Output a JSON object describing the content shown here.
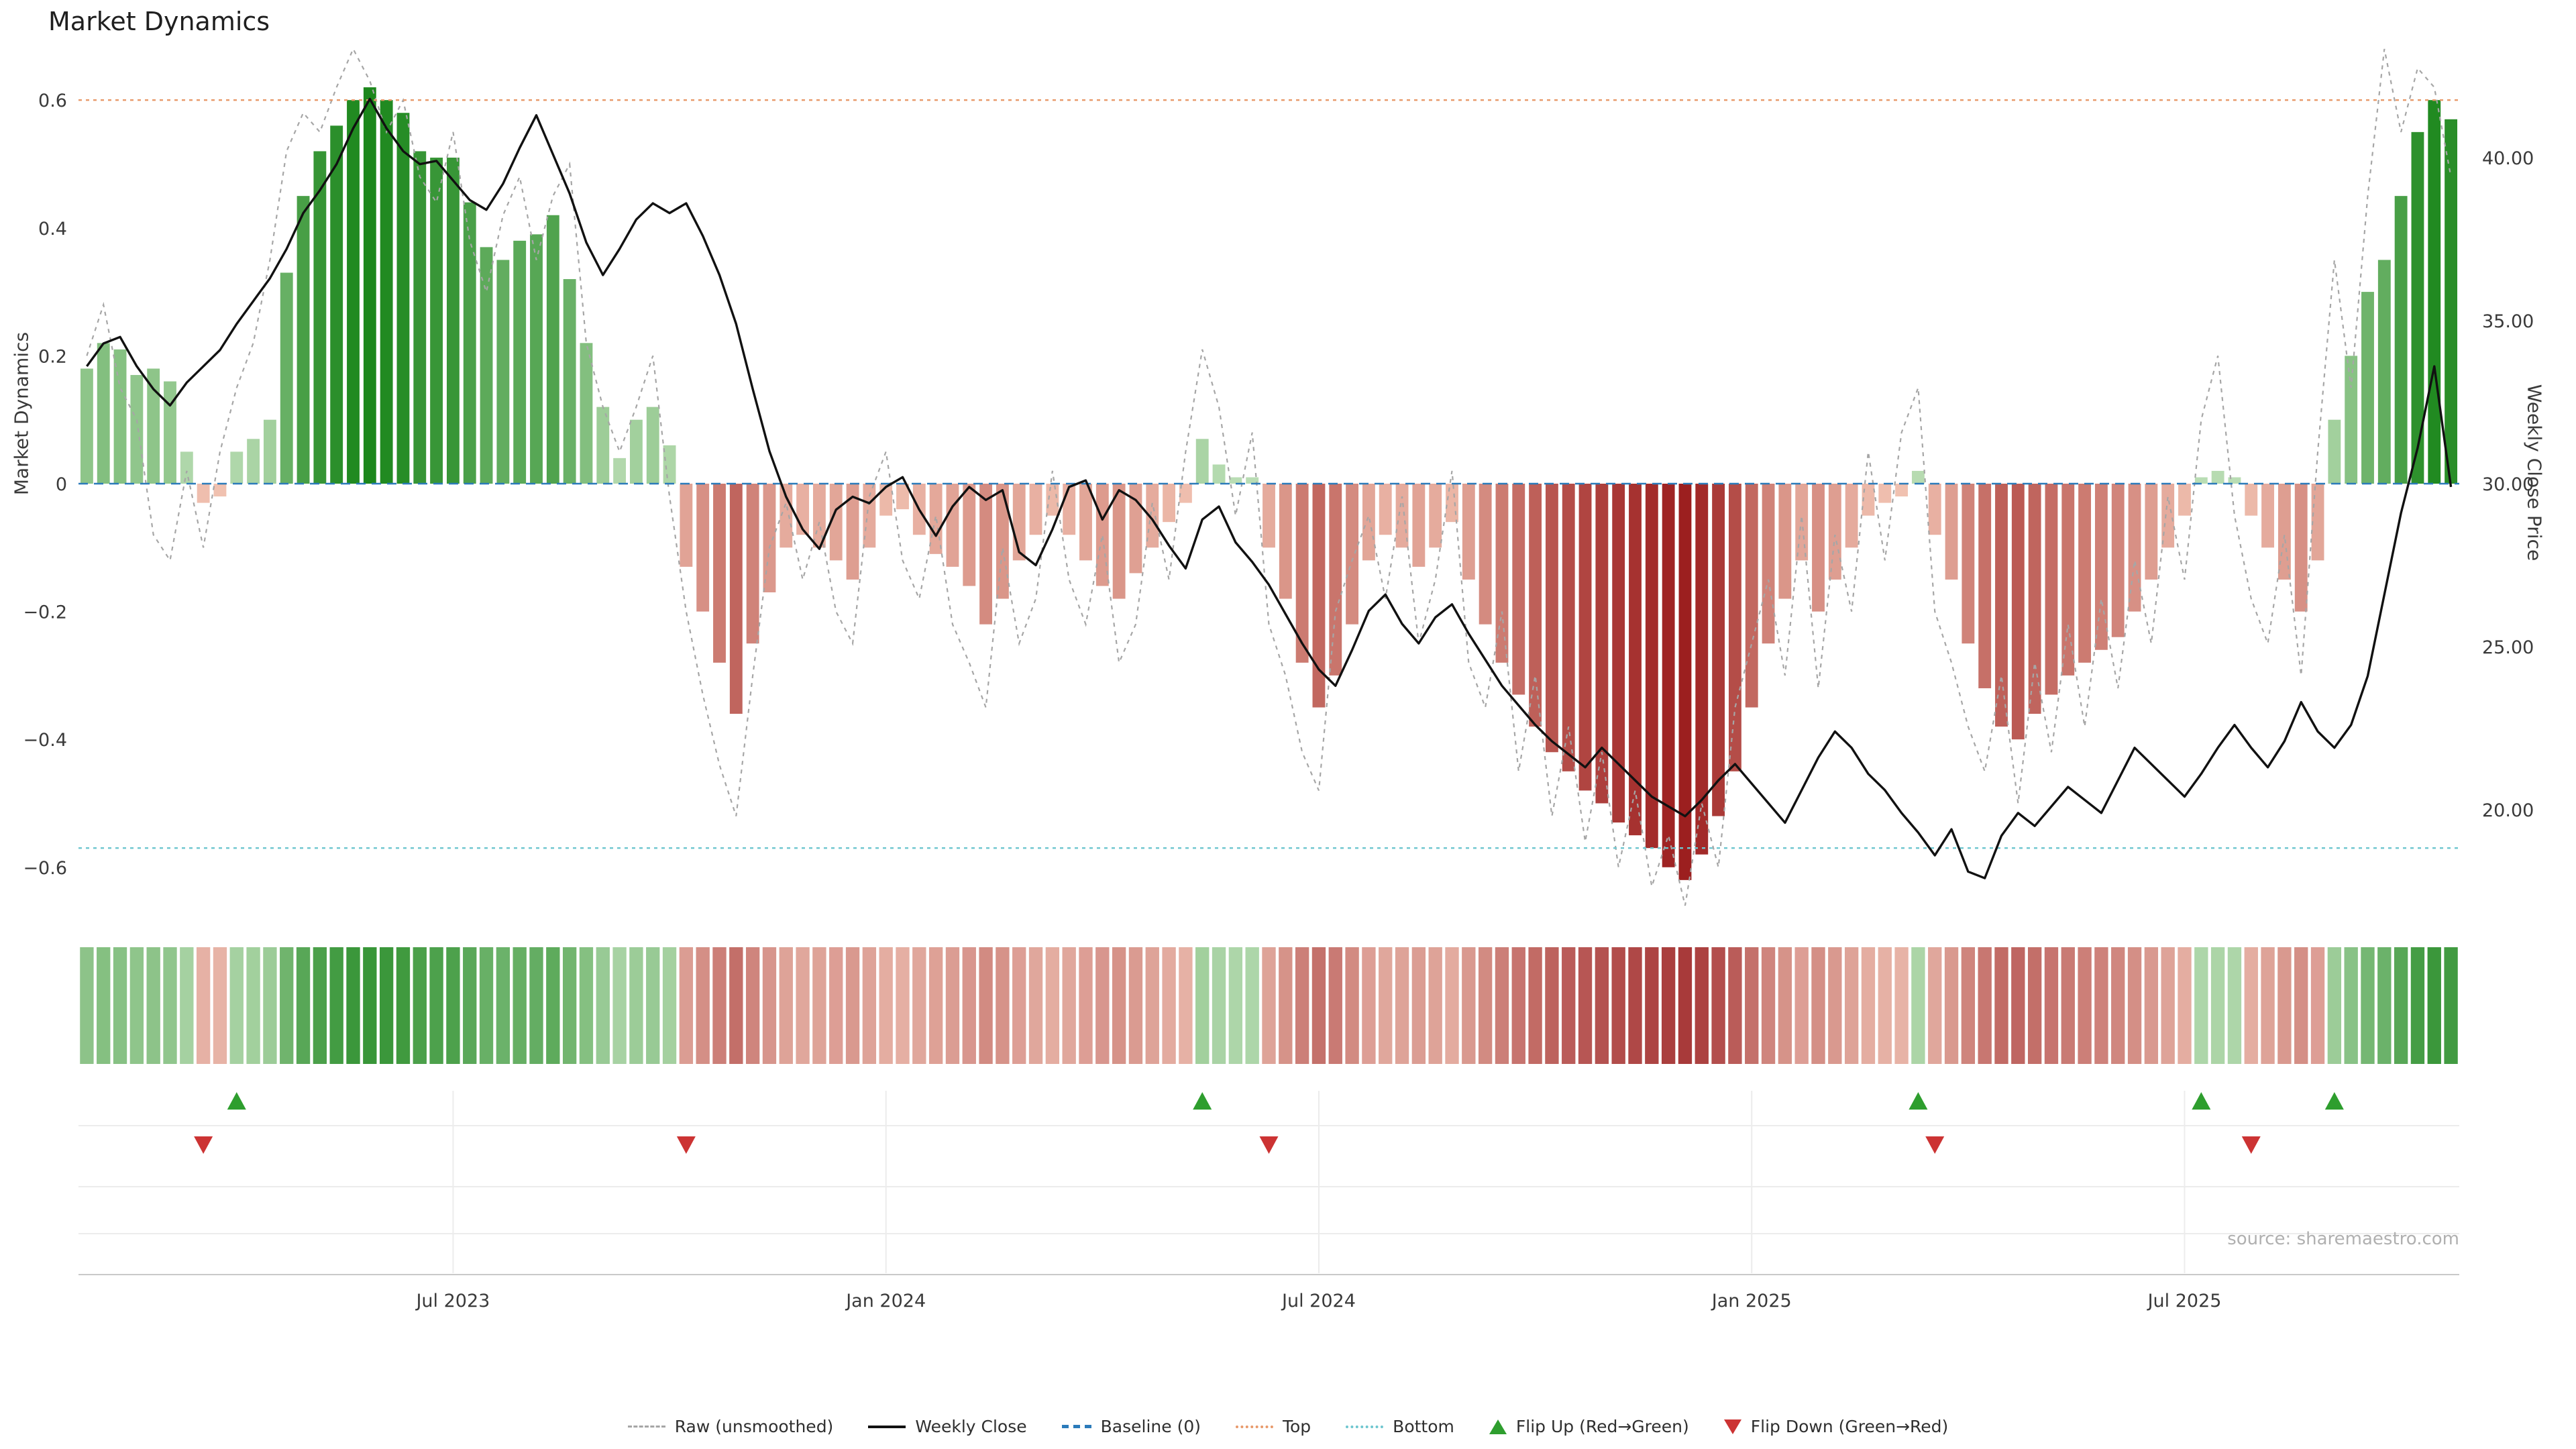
{
  "source": "source: sharemaestro.com",
  "legend": {
    "items": [
      {
        "label": "Raw (unsmoothed)"
      },
      {
        "label": "Weekly Close"
      },
      {
        "label": "Baseline (0)"
      },
      {
        "label": "Top"
      },
      {
        "label": "Bottom"
      },
      {
        "label": "Flip Up (Red→Green)"
      },
      {
        "label": "Flip Down (Green→Red)"
      }
    ]
  },
  "colors": {
    "green_light": "#bcdeb6",
    "green_dark": "#1c871c",
    "red_light": "#f3c6b5",
    "red_dark": "#9c1f1f",
    "close_line": "#111111",
    "raw_line": "#a6a6a6",
    "baseline_line": "#2b7bba",
    "top_line": "#e8996a",
    "bottom_line": "#6ec6cf",
    "flip_up": "#2e9e2e",
    "flip_down": "#cc3333"
  },
  "chart_data": {
    "type": "bar",
    "title": "Market Dynamics",
    "legend_position": "bottom",
    "grid": false,
    "n_points": 143,
    "x_axis": {
      "tick_labels": [
        "Jul 2023",
        "Jan 2024",
        "Jul 2024",
        "Jan 2025",
        "Jul 2025"
      ],
      "tick_indices": [
        22,
        48,
        74,
        100,
        126
      ]
    },
    "y_left": {
      "label": "Market Dynamics",
      "tick_labels": [
        "0.6",
        "0.4",
        "0.2",
        "0",
        "−0.2",
        "−0.4",
        "−0.6"
      ],
      "tick_values": [
        0.6,
        0.4,
        0.2,
        0,
        -0.2,
        -0.4,
        -0.6
      ],
      "range": [
        -0.7,
        0.7
      ]
    },
    "y_right": {
      "label": "Weekly Close Price",
      "tick_labels": [
        "40.00",
        "35.00",
        "30.00",
        "25.00",
        "20.00"
      ],
      "tick_values": [
        40,
        35,
        30,
        25,
        20
      ],
      "range": [
        17,
        43
      ]
    },
    "reference_lines": {
      "baseline": 0,
      "top": 0.6,
      "bottom": -0.57
    },
    "flips": {
      "up_indices": [
        9,
        67,
        110,
        127,
        135
      ],
      "down_indices": [
        7,
        36,
        71,
        111,
        130
      ]
    },
    "series": [
      {
        "name": "Market Dynamics (bars)",
        "type": "bar",
        "axis": "left",
        "values": [
          0.18,
          0.22,
          0.21,
          0.17,
          0.18,
          0.16,
          0.05,
          -0.03,
          -0.02,
          0.05,
          0.07,
          0.1,
          0.33,
          0.45,
          0.52,
          0.56,
          0.6,
          0.62,
          0.6,
          0.58,
          0.52,
          0.51,
          0.51,
          0.44,
          0.37,
          0.35,
          0.38,
          0.39,
          0.42,
          0.32,
          0.22,
          0.12,
          0.04,
          0.1,
          0.12,
          0.06,
          -0.13,
          -0.2,
          -0.28,
          -0.36,
          -0.25,
          -0.17,
          -0.1,
          -0.08,
          -0.1,
          -0.12,
          -0.15,
          -0.1,
          -0.05,
          -0.04,
          -0.08,
          -0.11,
          -0.13,
          -0.16,
          -0.22,
          -0.18,
          -0.12,
          -0.08,
          -0.05,
          -0.08,
          -0.12,
          -0.16,
          -0.18,
          -0.14,
          -0.1,
          -0.06,
          -0.03,
          0.07,
          0.03,
          0.01,
          0.01,
          -0.1,
          -0.18,
          -0.28,
          -0.35,
          -0.3,
          -0.22,
          -0.12,
          -0.08,
          -0.1,
          -0.13,
          -0.1,
          -0.06,
          -0.15,
          -0.22,
          -0.28,
          -0.33,
          -0.38,
          -0.42,
          -0.45,
          -0.48,
          -0.5,
          -0.53,
          -0.55,
          -0.57,
          -0.6,
          -0.62,
          -0.58,
          -0.52,
          -0.45,
          -0.35,
          -0.25,
          -0.18,
          -0.12,
          -0.2,
          -0.15,
          -0.1,
          -0.05,
          -0.03,
          -0.02,
          0.02,
          -0.08,
          -0.15,
          -0.25,
          -0.32,
          -0.38,
          -0.4,
          -0.36,
          -0.33,
          -0.3,
          -0.28,
          -0.26,
          -0.24,
          -0.2,
          -0.15,
          -0.1,
          -0.05,
          0.01,
          0.02,
          0.01,
          -0.05,
          -0.1,
          -0.15,
          -0.2,
          -0.12,
          0.1,
          0.2,
          0.3,
          0.35,
          0.45,
          0.55,
          0.6,
          0.57
        ]
      },
      {
        "name": "Raw (unsmoothed)",
        "type": "line",
        "style": "dashed",
        "axis": "left",
        "values": [
          0.2,
          0.28,
          0.15,
          0.1,
          -0.08,
          -0.12,
          0.02,
          -0.1,
          0.05,
          0.15,
          0.22,
          0.35,
          0.52,
          0.58,
          0.55,
          0.62,
          0.68,
          0.63,
          0.55,
          0.6,
          0.48,
          0.44,
          0.55,
          0.38,
          0.3,
          0.42,
          0.48,
          0.35,
          0.45,
          0.5,
          0.22,
          0.12,
          0.05,
          0.12,
          0.2,
          -0.02,
          -0.2,
          -0.33,
          -0.44,
          -0.52,
          -0.3,
          -0.1,
          -0.03,
          -0.15,
          -0.06,
          -0.2,
          -0.25,
          -0.02,
          0.05,
          -0.12,
          -0.18,
          -0.05,
          -0.22,
          -0.28,
          -0.35,
          -0.1,
          -0.25,
          -0.18,
          0.02,
          -0.15,
          -0.22,
          -0.08,
          -0.28,
          -0.22,
          -0.03,
          -0.15,
          0.05,
          0.21,
          0.12,
          -0.05,
          0.08,
          -0.22,
          -0.3,
          -0.42,
          -0.48,
          -0.2,
          -0.12,
          -0.05,
          -0.18,
          -0.02,
          -0.25,
          -0.15,
          0.02,
          -0.28,
          -0.35,
          -0.2,
          -0.45,
          -0.3,
          -0.52,
          -0.38,
          -0.56,
          -0.42,
          -0.6,
          -0.48,
          -0.63,
          -0.55,
          -0.66,
          -0.5,
          -0.6,
          -0.35,
          -0.25,
          -0.15,
          -0.3,
          -0.05,
          -0.32,
          -0.08,
          -0.2,
          0.05,
          -0.12,
          0.08,
          0.15,
          -0.2,
          -0.28,
          -0.38,
          -0.45,
          -0.3,
          -0.5,
          -0.28,
          -0.42,
          -0.22,
          -0.38,
          -0.18,
          -0.32,
          -0.12,
          -0.25,
          -0.02,
          -0.15,
          0.1,
          0.2,
          -0.05,
          -0.18,
          -0.25,
          -0.08,
          -0.3,
          0.05,
          0.35,
          0.15,
          0.45,
          0.68,
          0.55,
          0.65,
          0.62,
          0.48
        ]
      },
      {
        "name": "Weekly Close",
        "type": "line",
        "axis": "right",
        "values": [
          33.6,
          34.3,
          34.5,
          33.6,
          32.9,
          32.4,
          33.1,
          33.6,
          34.1,
          34.9,
          35.6,
          36.3,
          37.2,
          38.3,
          39.0,
          39.8,
          40.9,
          41.8,
          40.9,
          40.2,
          39.8,
          39.9,
          39.3,
          38.7,
          38.4,
          39.2,
          40.3,
          41.3,
          40.1,
          38.9,
          37.4,
          36.4,
          37.2,
          38.1,
          38.6,
          38.3,
          38.6,
          37.6,
          36.4,
          34.9,
          32.9,
          31.0,
          29.6,
          28.6,
          28.0,
          29.2,
          29.6,
          29.4,
          29.9,
          30.2,
          29.2,
          28.4,
          29.3,
          29.9,
          29.5,
          29.8,
          27.9,
          27.5,
          28.6,
          29.9,
          30.1,
          28.9,
          29.8,
          29.5,
          28.9,
          28.1,
          27.4,
          28.9,
          29.3,
          28.2,
          27.6,
          26.9,
          26.0,
          25.1,
          24.3,
          23.8,
          24.9,
          26.1,
          26.6,
          25.7,
          25.1,
          25.9,
          26.3,
          25.4,
          24.6,
          23.8,
          23.2,
          22.6,
          22.1,
          21.7,
          21.3,
          21.9,
          21.4,
          20.9,
          20.4,
          20.1,
          19.8,
          20.3,
          20.9,
          21.4,
          20.8,
          20.2,
          19.6,
          20.6,
          21.6,
          22.4,
          21.9,
          21.1,
          20.6,
          19.9,
          19.3,
          18.6,
          19.4,
          18.1,
          17.9,
          19.2,
          19.9,
          19.5,
          20.1,
          20.7,
          20.3,
          19.9,
          20.9,
          21.9,
          21.4,
          20.9,
          20.4,
          21.1,
          21.9,
          22.6,
          21.9,
          21.3,
          22.1,
          23.3,
          22.4,
          21.9,
          22.6,
          24.1,
          26.6,
          29.1,
          31.1,
          33.6,
          29.9
        ]
      }
    ]
  }
}
